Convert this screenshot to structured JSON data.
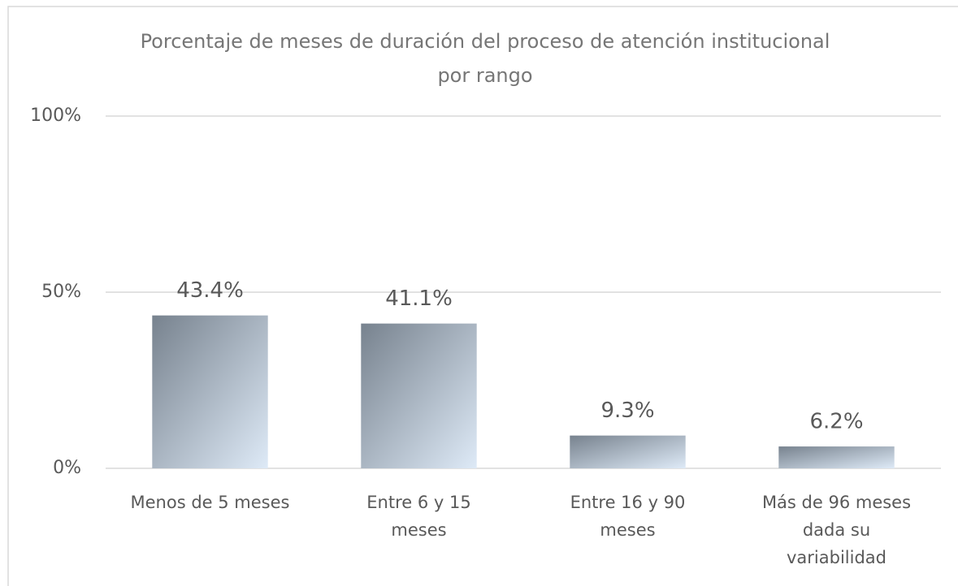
{
  "chart_data": {
    "type": "bar",
    "title": "Porcentaje de meses de duración del proceso de atención institucional por rango",
    "categories": [
      "Menos de 5 meses",
      "Entre 6 y 15 meses",
      "Entre 16 y 90 meses",
      "Más de 96 meses dada su variabilidad"
    ],
    "values": [
      43.4,
      41.1,
      9.3,
      6.2
    ],
    "value_labels": [
      "43.4%",
      "41.1%",
      "9.3%",
      "6.2%"
    ],
    "color": [
      "#77828e",
      "#deeaf7"
    ],
    "ylim": [
      0,
      100
    ],
    "yticks": [
      {
        "value": 0,
        "label": "0%"
      },
      {
        "value": 50,
        "label": "50%"
      },
      {
        "value": 100,
        "label": "100%"
      }
    ],
    "grid": true
  }
}
